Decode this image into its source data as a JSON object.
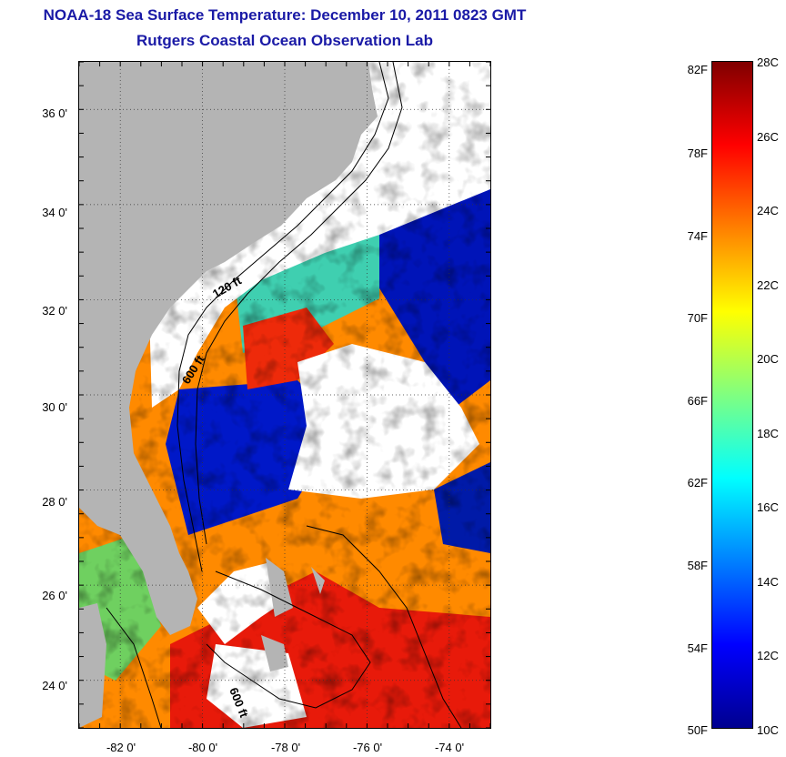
{
  "title": {
    "line1": "NOAA-18 Sea Surface Temperature:  December 10, 2011 0823 GMT",
    "line2": "Rutgers Coastal Ocean Observation Lab"
  },
  "map": {
    "lat_labels": [
      "36 0'",
      "34 0'",
      "32 0'",
      "30 0'",
      "28 0'",
      "26 0'",
      "24 0'"
    ],
    "lat_values": [
      36,
      34,
      32,
      30,
      28,
      26,
      24
    ],
    "lon_labels": [
      "-82 0'",
      "-80 0'",
      "-78 0'",
      "-76 0'",
      "-74 0'"
    ],
    "lon_values": [
      -82,
      -80,
      -78,
      -76,
      -74
    ],
    "lat_range": [
      23.0,
      37.0
    ],
    "lon_range": [
      -83.0,
      -73.0
    ],
    "contour_labels": [
      "120 ft",
      "600 ft",
      "600 ft"
    ],
    "colors": {
      "land": "#b4b4b4",
      "cloud": "#ffffff",
      "contour": "#000000"
    }
  },
  "colorbar": {
    "fahrenheit_labels": [
      "82F",
      "78F",
      "74F",
      "70F",
      "66F",
      "62F",
      "58F",
      "54F",
      "50F"
    ],
    "celsius_labels": [
      "28C",
      "26C",
      "24C",
      "22C",
      "20C",
      "18C",
      "16C",
      "14C",
      "12C",
      "10C"
    ],
    "range_c": [
      10,
      28
    ],
    "stops": [
      "#00008f",
      "#0000ff",
      "#0080ff",
      "#00ffff",
      "#80ff80",
      "#ffff00",
      "#ff8000",
      "#ff0000",
      "#800000"
    ]
  }
}
